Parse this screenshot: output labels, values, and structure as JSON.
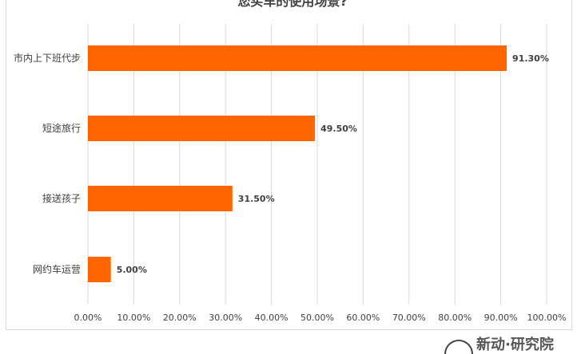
{
  "chart_data": {
    "type": "bar",
    "orientation": "horizontal",
    "title": "您买车的使用场景?",
    "categories": [
      "市内上下班代步",
      "短途旅行",
      "接送孩子",
      "网约车运营"
    ],
    "values": [
      91.3,
      49.5,
      31.5,
      5.0
    ],
    "data_labels": [
      "91.30%",
      "49.50%",
      "31.50%",
      "5.00%"
    ],
    "xlim": [
      0,
      100
    ],
    "x_ticks": [
      0,
      10,
      20,
      30,
      40,
      50,
      60,
      70,
      80,
      90,
      100
    ],
    "x_tick_labels": [
      "0.00%",
      "10.00%",
      "20.00%",
      "30.00%",
      "40.00%",
      "50.00%",
      "60.00%",
      "70.00%",
      "80.00%",
      "90.00%",
      "100.00%"
    ],
    "grid": "vertical",
    "legend": "none",
    "bar_color": "#ff6600",
    "xlabel": "",
    "ylabel": ""
  },
  "footer": {
    "logo_text": "新动·研究院"
  }
}
